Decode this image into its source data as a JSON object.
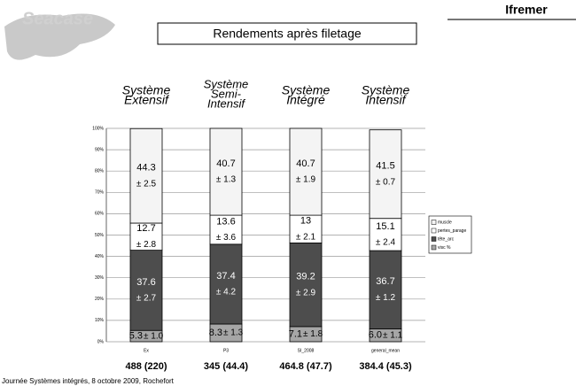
{
  "slide": {
    "logo": "Seacase",
    "brand": "Ifremer",
    "headers": [
      [
        "Système",
        "Extensif"
      ],
      [
        "Système",
        "Semi-",
        "Intensif"
      ],
      [
        "Système",
        "Intégré"
      ],
      [
        "Système",
        "Intensif"
      ]
    ],
    "totals": [
      "488 (220)",
      "345 (44.4)",
      "464.8 (47.7)",
      "384.4 (45.3)"
    ],
    "footer": "Journée Systèmes intégrés, 8 octobre 2009, Rochefort"
  },
  "chart_data": {
    "type": "stacked_bar",
    "title": "Rendements après filetage",
    "categories": [
      "Ex",
      "P3",
      "SI_2008",
      "general_mean"
    ],
    "series": [
      {
        "name": "visc %",
        "color": "#a6a6a6",
        "values": [
          5.3,
          8.3,
          7.1,
          6.0
        ],
        "value_labels": [
          "5.3",
          "8.3",
          "7.1",
          "6.0"
        ],
        "error_labels": [
          "± 1.0",
          "± 1.3",
          "± 1.8",
          "± 1.1"
        ]
      },
      {
        "name": "tête_arc",
        "color": "#4d4d4d",
        "values": [
          37.6,
          37.4,
          39.2,
          36.7
        ],
        "error_labels": [
          "± 2.7",
          "± 4.2",
          "± 2.9",
          "± 1.2"
        ]
      },
      {
        "name": "pertes_parage",
        "color": "#ffffff",
        "values": [
          12.7,
          13.6,
          13.0,
          15.1
        ],
        "error_labels": [
          "± 2.8",
          "± 3.6",
          "± 2.1",
          "± 2.4"
        ]
      },
      {
        "name": "muscle",
        "color": "#f4f4f4",
        "values": [
          44.3,
          40.7,
          40.7,
          41.5
        ],
        "error_labels": [
          "± 2.5",
          "± 1.3",
          "± 1.9",
          "± 0.7"
        ]
      }
    ],
    "ylim": [
      0,
      100
    ],
    "yticks": [
      {
        "value": 0,
        "label": "0%"
      },
      {
        "value": 10,
        "label": "10%"
      },
      {
        "value": 20,
        "label": "20%"
      },
      {
        "value": 30,
        "label": "30%"
      },
      {
        "value": 40,
        "label": "40%"
      },
      {
        "value": 50,
        "label": "50%"
      },
      {
        "value": 60,
        "label": "60%"
      },
      {
        "value": 70,
        "label": "70%"
      },
      {
        "value": 80,
        "label": "80%"
      },
      {
        "value": 90,
        "label": "90%"
      },
      {
        "value": 100,
        "label": "100%"
      }
    ],
    "grid": true
  }
}
